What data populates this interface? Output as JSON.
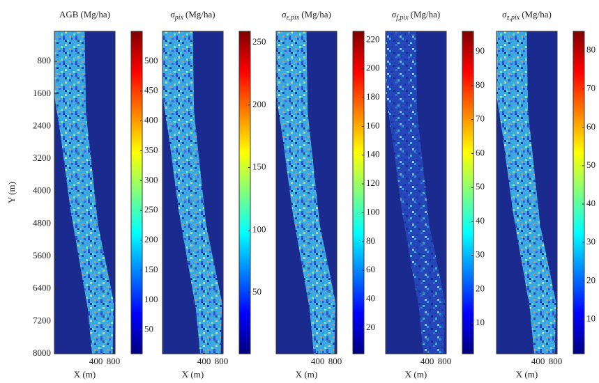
{
  "chart_data": [
    {
      "type": "heatmap",
      "title": "AGB",
      "unit": "(Mg/ha)",
      "ylabel": "Y (m)",
      "xlabel": "X (m)",
      "colormap": "jet",
      "xlim": [
        -560,
        840
      ],
      "xticks": [
        400,
        800
      ],
      "ylim": [
        8000,
        60
      ],
      "yticks": [
        800,
        1600,
        2400,
        3200,
        4000,
        4800,
        5600,
        6400,
        7200,
        8000
      ],
      "clim": [
        10,
        550
      ],
      "cticks": [
        50,
        100,
        150,
        200,
        250,
        300,
        350,
        400,
        450,
        500
      ]
    },
    {
      "type": "heatmap",
      "title": "σ",
      "title_sub": "pix",
      "unit": "(Mg/ha)",
      "xlabel": "X (m)",
      "colormap": "jet",
      "xlim": [
        -560,
        840
      ],
      "xticks": [
        400,
        800
      ],
      "ylim": [
        8000,
        60
      ],
      "clim": [
        1,
        259
      ],
      "cticks": [
        50,
        100,
        150,
        200,
        250
      ]
    },
    {
      "type": "heatmap",
      "title": "σ",
      "title_sub": "ε,pix",
      "unit": "(Mg/ha)",
      "xlabel": "X (m)",
      "colormap": "jet",
      "xlim": [
        -560,
        840
      ],
      "xticks": [
        400,
        800
      ],
      "ylim": [
        8000,
        60
      ],
      "clim": [
        2,
        226
      ],
      "cticks": [
        20,
        40,
        60,
        80,
        100,
        120,
        140,
        160,
        180,
        200,
        220
      ]
    },
    {
      "type": "heatmap",
      "title": "σ",
      "title_sub": "f,pix",
      "unit": "(Mg/ha)",
      "xlabel": "X (m)",
      "colormap": "jet",
      "xlim": [
        -560,
        840
      ],
      "xticks": [
        400,
        800
      ],
      "ylim": [
        8000,
        60
      ],
      "clim": [
        1,
        96
      ],
      "cticks": [
        10,
        20,
        30,
        40,
        50,
        60,
        70,
        80,
        90
      ]
    },
    {
      "type": "heatmap",
      "title": "σ",
      "title_sub": "z,pix",
      "unit": "(Mg/ha)",
      "xlabel": "X (m)",
      "colormap": "jet",
      "xlim": [
        -560,
        840
      ],
      "xticks": [
        400,
        800
      ],
      "ylim": [
        8000,
        60
      ],
      "clim": [
        1,
        85
      ],
      "cticks": [
        10,
        20,
        30,
        40,
        50,
        60,
        70,
        80
      ]
    }
  ]
}
